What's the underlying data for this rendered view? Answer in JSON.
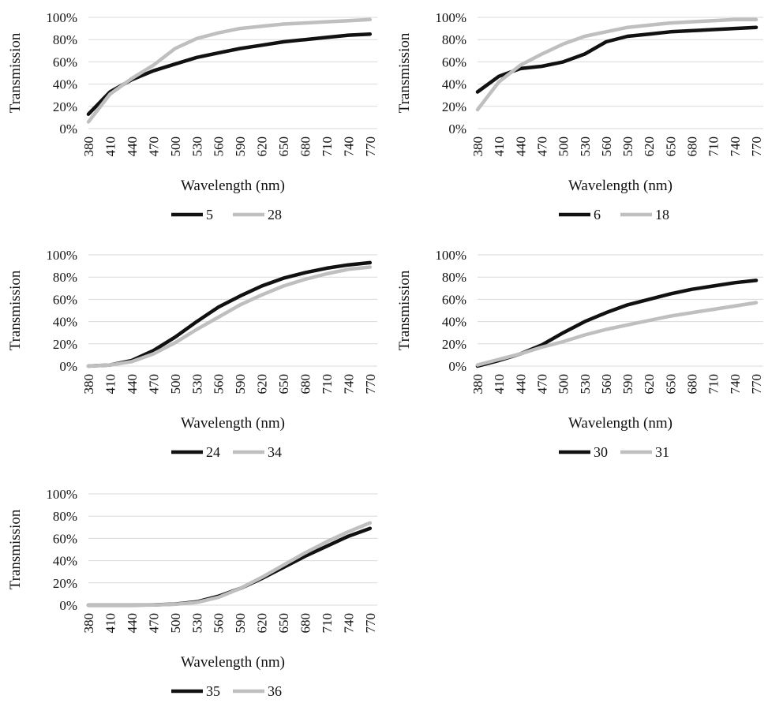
{
  "chart_data": [
    {
      "type": "line",
      "xlabel": "Wavelength (nm)",
      "ylabel": "Transmission",
      "yticks": [
        "0%",
        "20%",
        "40%",
        "60%",
        "80%",
        "100%"
      ],
      "ylim": [
        0,
        100
      ],
      "x": [
        380,
        410,
        440,
        470,
        500,
        530,
        560,
        590,
        620,
        650,
        680,
        710,
        740,
        770
      ],
      "xlim": [
        380,
        780
      ],
      "grid": true,
      "legend_position": "bottom",
      "series": [
        {
          "name": "5",
          "color": "#111111",
          "values": [
            13,
            33,
            44,
            52,
            58,
            64,
            68,
            72,
            75,
            78,
            80,
            82,
            84,
            85
          ]
        },
        {
          "name": "28",
          "color": "#bfbfbf",
          "values": [
            6,
            31,
            45,
            57,
            72,
            81,
            86,
            90,
            92,
            94,
            95,
            96,
            97,
            98
          ]
        }
      ]
    },
    {
      "type": "line",
      "xlabel": "Wavelength (nm)",
      "ylabel": "Transmission",
      "yticks": [
        "0%",
        "20%",
        "40%",
        "60%",
        "80%",
        "100%"
      ],
      "ylim": [
        0,
        100
      ],
      "x": [
        380,
        410,
        440,
        470,
        500,
        530,
        560,
        590,
        620,
        650,
        680,
        710,
        740,
        770
      ],
      "xlim": [
        380,
        780
      ],
      "grid": true,
      "legend_position": "bottom",
      "series": [
        {
          "name": "6",
          "color": "#111111",
          "values": [
            33,
            47,
            54,
            56,
            60,
            67,
            78,
            83,
            85,
            87,
            88,
            89,
            90,
            91
          ]
        },
        {
          "name": "18",
          "color": "#bfbfbf",
          "values": [
            17,
            42,
            57,
            67,
            76,
            83,
            87,
            91,
            93,
            95,
            96,
            97,
            98,
            98
          ]
        }
      ]
    },
    {
      "type": "line",
      "xlabel": "Wavelength (nm)",
      "ylabel": "Transmission",
      "yticks": [
        "0%",
        "20%",
        "40%",
        "60%",
        "80%",
        "100%"
      ],
      "ylim": [
        0,
        100
      ],
      "x": [
        380,
        410,
        440,
        470,
        500,
        530,
        560,
        590,
        620,
        650,
        680,
        710,
        740,
        770
      ],
      "xlim": [
        380,
        780
      ],
      "grid": true,
      "legend_position": "bottom",
      "series": [
        {
          "name": "24",
          "color": "#111111",
          "values": [
            0,
            1,
            5,
            14,
            26,
            40,
            53,
            63,
            72,
            79,
            84,
            88,
            91,
            93
          ]
        },
        {
          "name": "34",
          "color": "#bfbfbf",
          "values": [
            0,
            1,
            4,
            11,
            21,
            33,
            44,
            55,
            64,
            72,
            78,
            83,
            87,
            89
          ]
        }
      ]
    },
    {
      "type": "line",
      "xlabel": "Wavelength (nm)",
      "ylabel": "Transmission",
      "yticks": [
        "0%",
        "20%",
        "40%",
        "60%",
        "80%",
        "100%"
      ],
      "ylim": [
        0,
        100
      ],
      "x": [
        380,
        410,
        440,
        470,
        500,
        530,
        560,
        590,
        620,
        650,
        680,
        710,
        740,
        770
      ],
      "xlim": [
        380,
        780
      ],
      "grid": true,
      "legend_position": "bottom",
      "series": [
        {
          "name": "30",
          "color": "#111111",
          "values": [
            0,
            5,
            11,
            19,
            30,
            40,
            48,
            55,
            60,
            65,
            69,
            72,
            75,
            77
          ]
        },
        {
          "name": "31",
          "color": "#bfbfbf",
          "values": [
            1,
            6,
            11,
            17,
            22,
            28,
            33,
            37,
            41,
            45,
            48,
            51,
            54,
            57
          ]
        }
      ]
    },
    {
      "type": "line",
      "xlabel": "Wavelength (nm)",
      "ylabel": "Transmission",
      "yticks": [
        "0%",
        "20%",
        "40%",
        "60%",
        "80%",
        "100%"
      ],
      "ylim": [
        0,
        100
      ],
      "x": [
        380,
        410,
        440,
        470,
        500,
        530,
        560,
        590,
        620,
        650,
        680,
        710,
        740,
        770
      ],
      "xlim": [
        380,
        780
      ],
      "grid": true,
      "legend_position": "bottom",
      "series": [
        {
          "name": "35",
          "color": "#111111",
          "values": [
            0,
            0,
            0,
            0.3,
            1,
            3,
            8,
            15,
            24,
            34,
            44,
            53,
            62,
            69
          ]
        },
        {
          "name": "36",
          "color": "#bfbfbf",
          "values": [
            0,
            0,
            0,
            0.2,
            0.8,
            2.5,
            7,
            15,
            25,
            36,
            47,
            57,
            66,
            74
          ]
        }
      ]
    }
  ]
}
